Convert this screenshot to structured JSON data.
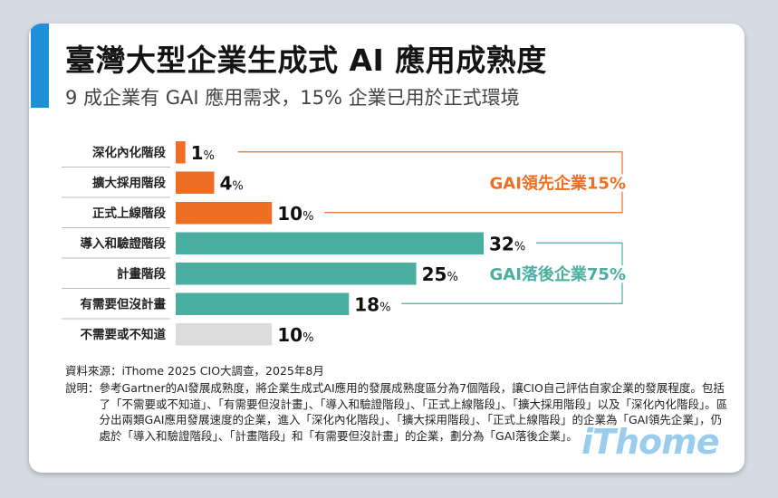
{
  "header": {
    "title": "臺灣大型企業生成式 AI 應用成熟度",
    "subtitle": "9 成企業有 GAI 應用需求，15% 企業已用於正式環境"
  },
  "colors": {
    "accent": "#1f8fd8",
    "leader": "#ee6f24",
    "follower": "#4aaea0",
    "none": "#dcdcdc"
  },
  "chart_data": {
    "type": "bar",
    "orientation": "horizontal",
    "categories": [
      "深化內化階段",
      "擴大採用階段",
      "正式上線階段",
      "導入和驗證階段",
      "計畫階段",
      "有需要但沒計畫",
      "不需要或不知道"
    ],
    "values": [
      1,
      4,
      10,
      32,
      25,
      18,
      10
    ],
    "value_labels": [
      "1",
      "4",
      "10",
      "32",
      "25",
      "18",
      "10"
    ],
    "unit": "%",
    "groups": [
      "leader",
      "leader",
      "leader",
      "follower",
      "follower",
      "follower",
      "none"
    ],
    "annotations": [
      {
        "label": "GAI領先企業15%",
        "group": "leader"
      },
      {
        "label": "GAI落後企業75%",
        "group": "follower"
      }
    ],
    "xlim": [
      0,
      32
    ],
    "grid": false,
    "legend": "none"
  },
  "footer": {
    "source": "資料來源：iThome 2025 CIO大調查，2025年8月",
    "note_label": "說明：",
    "note_text": "參考Gartner的AI發展成熟度，將企業生成式AI應用的發展成熟度區分為7個階段，讓CIO自己評估自家企業的發展程度。包括了「不需要或不知道」、「有需要但沒計畫」、「導入和驗證階段」、「正式上線階段」、「擴大採用階段」以及「深化內化階段」。區分出兩類GAI應用發展速度的企業，進入「深化內化階段」、「擴大採用階段」、「正式上線階段」的企業為「GAI領先企業」，仍處於「導入和驗證階段」、「計畫階段」和「有需要但沒計畫」的企業，劃分為「GAI落後企業」。",
    "watermark": "iThome"
  }
}
